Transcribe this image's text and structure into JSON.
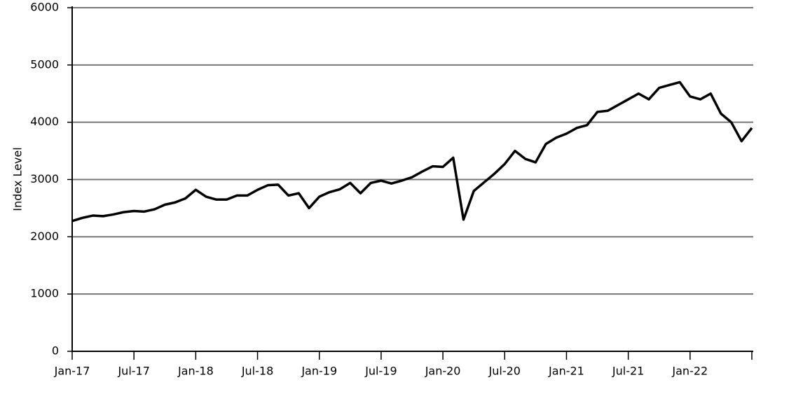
{
  "chart_data": {
    "type": "line",
    "y_label": "Index Level",
    "x": [
      "Jan-17",
      "Feb-17",
      "Mar-17",
      "Apr-17",
      "May-17",
      "Jun-17",
      "Jul-17",
      "Aug-17",
      "Sep-17",
      "Oct-17",
      "Nov-17",
      "Dec-17",
      "Jan-18",
      "Feb-18",
      "Mar-18",
      "Apr-18",
      "May-18",
      "Jun-18",
      "Jul-18",
      "Aug-18",
      "Sep-18",
      "Oct-18",
      "Nov-18",
      "Dec-18",
      "Jan-19",
      "Feb-19",
      "Mar-19",
      "Apr-19",
      "May-19",
      "Jun-19",
      "Jul-19",
      "Aug-19",
      "Sep-19",
      "Oct-19",
      "Nov-19",
      "Dec-19",
      "Jan-20",
      "Feb-20",
      "Mar-20",
      "Apr-20",
      "May-20",
      "Jun-20",
      "Jul-20",
      "Aug-20",
      "Sep-20",
      "Oct-20",
      "Nov-20",
      "Dec-20",
      "Jan-21",
      "Feb-21",
      "Mar-21",
      "Apr-21",
      "May-21",
      "Jun-21",
      "Jul-21",
      "Aug-21",
      "Sep-21",
      "Oct-21",
      "Nov-21",
      "Dec-21",
      "Jan-22",
      "Feb-22",
      "Mar-22",
      "Apr-22",
      "May-22",
      "Jun-22",
      "Jul-22"
    ],
    "series": [
      {
        "name": "Index Level",
        "color": "#000000",
        "values": [
          2275,
          2330,
          2370,
          2360,
          2390,
          2430,
          2450,
          2440,
          2480,
          2560,
          2600,
          2670,
          2820,
          2700,
          2650,
          2650,
          2720,
          2720,
          2820,
          2900,
          2910,
          2720,
          2760,
          2500,
          2700,
          2780,
          2830,
          2940,
          2760,
          2940,
          2980,
          2930,
          2980,
          3040,
          3140,
          3230,
          3220,
          3380,
          2300,
          2800,
          2950,
          3100,
          3270,
          3500,
          3360,
          3300,
          3620,
          3730,
          3800,
          3900,
          3950,
          4180,
          4200,
          4300,
          4400,
          4500,
          4400,
          4600,
          4650,
          4700,
          4450,
          4400,
          4500,
          4150,
          4000,
          3670,
          3900
        ]
      }
    ],
    "xticks": [
      "Jan-17",
      "Jul-17",
      "Jan-18",
      "Jul-18",
      "Jan-19",
      "Jul-19",
      "Jan-20",
      "Jul-20",
      "Jan-21",
      "Jul-21",
      "Jan-22"
    ],
    "ylim": [
      0,
      6000
    ],
    "yticks": [
      0,
      1000,
      2000,
      3000,
      4000,
      5000,
      6000
    ],
    "grid": true
  }
}
